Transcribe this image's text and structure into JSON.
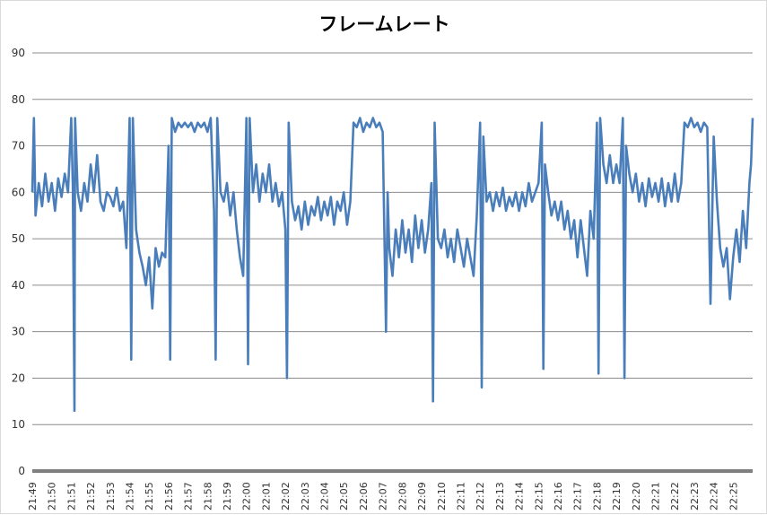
{
  "chart_data": {
    "type": "line",
    "title": "フレームレート",
    "xlabel": "",
    "ylabel": "",
    "ylim": [
      0,
      90
    ],
    "ytick_step": 10,
    "grid": true,
    "legend": "none",
    "series_color": "#4a7ebb",
    "time_ticks": [
      "21:49",
      "21:50",
      "21:51",
      "21:52",
      "21:53",
      "21:54",
      "21:55",
      "21:56",
      "21:57",
      "21:58",
      "21:59",
      "22:00",
      "22:01",
      "22:02",
      "22:03",
      "22:04",
      "22:05",
      "22:06",
      "22:07",
      "22:08",
      "22:09",
      "22:10",
      "22:11",
      "22:12",
      "22:13",
      "22:14",
      "22:15",
      "22:16",
      "22:17",
      "22:18",
      "22:19",
      "22:20",
      "22:21",
      "22:22",
      "22:23",
      "22:24",
      "22:25"
    ],
    "series": [
      {
        "points": [
          [
            "21:49:00",
            60
          ],
          [
            "21:49:05",
            76
          ],
          [
            "21:49:10",
            55
          ],
          [
            "21:49:20",
            62
          ],
          [
            "21:49:30",
            57
          ],
          [
            "21:49:40",
            64
          ],
          [
            "21:49:50",
            58
          ],
          [
            "21:50:00",
            62
          ],
          [
            "21:50:10",
            56
          ],
          [
            "21:50:20",
            63
          ],
          [
            "21:50:30",
            59
          ],
          [
            "21:50:40",
            64
          ],
          [
            "21:50:50",
            60
          ],
          [
            "21:51:00",
            76
          ],
          [
            "21:51:05",
            61
          ],
          [
            "21:51:10",
            13
          ],
          [
            "21:51:12",
            76
          ],
          [
            "21:51:20",
            60
          ],
          [
            "21:51:30",
            56
          ],
          [
            "21:51:40",
            62
          ],
          [
            "21:51:50",
            58
          ],
          [
            "21:52:00",
            66
          ],
          [
            "21:52:10",
            60
          ],
          [
            "21:52:20",
            68
          ],
          [
            "21:52:30",
            58
          ],
          [
            "21:52:40",
            56
          ],
          [
            "21:52:50",
            60
          ],
          [
            "21:53:00",
            59
          ],
          [
            "21:53:10",
            57
          ],
          [
            "21:53:20",
            61
          ],
          [
            "21:53:30",
            56
          ],
          [
            "21:53:40",
            58
          ],
          [
            "21:53:50",
            48
          ],
          [
            "21:54:00",
            76
          ],
          [
            "21:54:05",
            24
          ],
          [
            "21:54:10",
            76
          ],
          [
            "21:54:20",
            52
          ],
          [
            "21:54:30",
            47
          ],
          [
            "21:54:40",
            44
          ],
          [
            "21:54:50",
            40
          ],
          [
            "21:55:00",
            46
          ],
          [
            "21:55:10",
            35
          ],
          [
            "21:55:20",
            48
          ],
          [
            "21:55:30",
            44
          ],
          [
            "21:55:40",
            47
          ],
          [
            "21:55:50",
            46
          ],
          [
            "21:56:00",
            70
          ],
          [
            "21:56:05",
            24
          ],
          [
            "21:56:10",
            76
          ],
          [
            "21:56:20",
            73
          ],
          [
            "21:56:30",
            75
          ],
          [
            "21:56:40",
            74
          ],
          [
            "21:56:50",
            75
          ],
          [
            "21:57:00",
            74
          ],
          [
            "21:57:10",
            75
          ],
          [
            "21:57:20",
            73
          ],
          [
            "21:57:30",
            75
          ],
          [
            "21:57:40",
            74
          ],
          [
            "21:57:50",
            75
          ],
          [
            "21:58:00",
            73
          ],
          [
            "21:58:10",
            76
          ],
          [
            "21:58:20",
            56
          ],
          [
            "21:58:25",
            24
          ],
          [
            "21:58:30",
            76
          ],
          [
            "21:58:40",
            60
          ],
          [
            "21:58:50",
            58
          ],
          [
            "21:59:00",
            62
          ],
          [
            "21:59:10",
            55
          ],
          [
            "21:59:20",
            60
          ],
          [
            "21:59:30",
            52
          ],
          [
            "21:59:40",
            46
          ],
          [
            "21:59:50",
            42
          ],
          [
            "22:00:00",
            76
          ],
          [
            "22:00:05",
            23
          ],
          [
            "22:00:10",
            76
          ],
          [
            "22:00:20",
            60
          ],
          [
            "22:00:30",
            66
          ],
          [
            "22:00:40",
            58
          ],
          [
            "22:00:50",
            64
          ],
          [
            "22:01:00",
            60
          ],
          [
            "22:01:10",
            66
          ],
          [
            "22:01:20",
            58
          ],
          [
            "22:01:30",
            62
          ],
          [
            "22:01:40",
            57
          ],
          [
            "22:01:50",
            60
          ],
          [
            "22:02:00",
            52
          ],
          [
            "22:02:05",
            20
          ],
          [
            "22:02:10",
            75
          ],
          [
            "22:02:20",
            58
          ],
          [
            "22:02:30",
            54
          ],
          [
            "22:02:40",
            57
          ],
          [
            "22:02:50",
            52
          ],
          [
            "22:03:00",
            58
          ],
          [
            "22:03:10",
            53
          ],
          [
            "22:03:20",
            57
          ],
          [
            "22:03:30",
            55
          ],
          [
            "22:03:40",
            59
          ],
          [
            "22:03:50",
            54
          ],
          [
            "22:04:00",
            58
          ],
          [
            "22:04:10",
            55
          ],
          [
            "22:04:20",
            59
          ],
          [
            "22:04:30",
            53
          ],
          [
            "22:04:40",
            58
          ],
          [
            "22:04:50",
            56
          ],
          [
            "22:05:00",
            60
          ],
          [
            "22:05:10",
            53
          ],
          [
            "22:05:20",
            58
          ],
          [
            "22:05:30",
            75
          ],
          [
            "22:05:40",
            74
          ],
          [
            "22:05:50",
            76
          ],
          [
            "22:06:00",
            73
          ],
          [
            "22:06:10",
            75
          ],
          [
            "22:06:20",
            74
          ],
          [
            "22:06:30",
            76
          ],
          [
            "22:06:40",
            74
          ],
          [
            "22:06:50",
            75
          ],
          [
            "22:07:00",
            73
          ],
          [
            "22:07:10",
            30
          ],
          [
            "22:07:15",
            60
          ],
          [
            "22:07:20",
            48
          ],
          [
            "22:07:30",
            42
          ],
          [
            "22:07:40",
            52
          ],
          [
            "22:07:50",
            46
          ],
          [
            "22:08:00",
            54
          ],
          [
            "22:08:10",
            47
          ],
          [
            "22:08:20",
            52
          ],
          [
            "22:08:30",
            45
          ],
          [
            "22:08:40",
            55
          ],
          [
            "22:08:50",
            48
          ],
          [
            "22:09:00",
            54
          ],
          [
            "22:09:10",
            47
          ],
          [
            "22:09:20",
            52
          ],
          [
            "22:09:30",
            62
          ],
          [
            "22:09:35",
            15
          ],
          [
            "22:09:40",
            75
          ],
          [
            "22:09:50",
            50
          ],
          [
            "22:10:00",
            48
          ],
          [
            "22:10:10",
            52
          ],
          [
            "22:10:20",
            46
          ],
          [
            "22:10:30",
            50
          ],
          [
            "22:10:40",
            45
          ],
          [
            "22:10:50",
            52
          ],
          [
            "22:11:00",
            48
          ],
          [
            "22:11:10",
            44
          ],
          [
            "22:11:20",
            50
          ],
          [
            "22:11:30",
            46
          ],
          [
            "22:11:40",
            42
          ],
          [
            "22:11:50",
            55
          ],
          [
            "22:12:00",
            75
          ],
          [
            "22:12:05",
            18
          ],
          [
            "22:12:10",
            72
          ],
          [
            "22:12:20",
            58
          ],
          [
            "22:12:30",
            60
          ],
          [
            "22:12:40",
            56
          ],
          [
            "22:12:50",
            60
          ],
          [
            "22:13:00",
            57
          ],
          [
            "22:13:10",
            61
          ],
          [
            "22:13:20",
            56
          ],
          [
            "22:13:30",
            59
          ],
          [
            "22:13:40",
            57
          ],
          [
            "22:13:50",
            60
          ],
          [
            "22:14:00",
            56
          ],
          [
            "22:14:10",
            60
          ],
          [
            "22:14:20",
            57
          ],
          [
            "22:14:30",
            62
          ],
          [
            "22:14:40",
            58
          ],
          [
            "22:14:50",
            60
          ],
          [
            "22:15:00",
            62
          ],
          [
            "22:15:10",
            75
          ],
          [
            "22:15:15",
            22
          ],
          [
            "22:15:20",
            66
          ],
          [
            "22:15:30",
            60
          ],
          [
            "22:15:40",
            55
          ],
          [
            "22:15:50",
            58
          ],
          [
            "22:16:00",
            54
          ],
          [
            "22:16:10",
            58
          ],
          [
            "22:16:20",
            52
          ],
          [
            "22:16:30",
            56
          ],
          [
            "22:16:40",
            50
          ],
          [
            "22:16:50",
            54
          ],
          [
            "22:17:00",
            46
          ],
          [
            "22:17:10",
            54
          ],
          [
            "22:17:20",
            48
          ],
          [
            "22:17:30",
            42
          ],
          [
            "22:17:40",
            56
          ],
          [
            "22:17:50",
            50
          ],
          [
            "22:18:00",
            75
          ],
          [
            "22:18:05",
            21
          ],
          [
            "22:18:10",
            76
          ],
          [
            "22:18:20",
            66
          ],
          [
            "22:18:30",
            62
          ],
          [
            "22:18:40",
            68
          ],
          [
            "22:18:50",
            62
          ],
          [
            "22:19:00",
            66
          ],
          [
            "22:19:10",
            62
          ],
          [
            "22:19:20",
            76
          ],
          [
            "22:19:25",
            20
          ],
          [
            "22:19:30",
            70
          ],
          [
            "22:19:40",
            64
          ],
          [
            "22:19:50",
            60
          ],
          [
            "22:20:00",
            64
          ],
          [
            "22:20:10",
            58
          ],
          [
            "22:20:20",
            62
          ],
          [
            "22:20:30",
            57
          ],
          [
            "22:20:40",
            63
          ],
          [
            "22:20:50",
            59
          ],
          [
            "22:21:00",
            62
          ],
          [
            "22:21:10",
            58
          ],
          [
            "22:21:20",
            63
          ],
          [
            "22:21:30",
            57
          ],
          [
            "22:21:40",
            62
          ],
          [
            "22:21:50",
            58
          ],
          [
            "22:22:00",
            64
          ],
          [
            "22:22:10",
            58
          ],
          [
            "22:22:20",
            62
          ],
          [
            "22:22:30",
            75
          ],
          [
            "22:22:40",
            74
          ],
          [
            "22:22:50",
            76
          ],
          [
            "22:23:00",
            74
          ],
          [
            "22:23:10",
            75
          ],
          [
            "22:23:20",
            73
          ],
          [
            "22:23:30",
            75
          ],
          [
            "22:23:40",
            74
          ],
          [
            "22:23:50",
            36
          ],
          [
            "22:24:00",
            72
          ],
          [
            "22:24:10",
            58
          ],
          [
            "22:24:20",
            48
          ],
          [
            "22:24:30",
            44
          ],
          [
            "22:24:40",
            48
          ],
          [
            "22:24:50",
            37
          ],
          [
            "22:25:00",
            46
          ],
          [
            "22:25:10",
            52
          ],
          [
            "22:25:20",
            45
          ],
          [
            "22:25:30",
            56
          ],
          [
            "22:25:40",
            48
          ],
          [
            "22:25:50",
            62
          ],
          [
            "22:25:55",
            66
          ],
          [
            "22:26:00",
            76
          ]
        ]
      }
    ]
  }
}
